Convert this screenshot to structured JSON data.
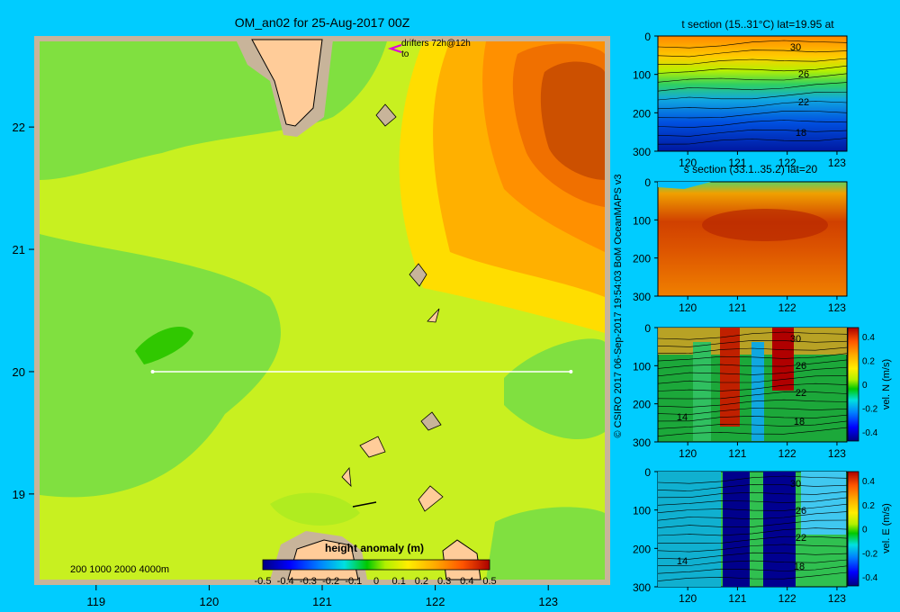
{
  "chart_data": [
    {
      "type": "heatmap",
      "title": "OM_an02 for 25-Aug-2017 00Z",
      "x_ticks": [
        "119",
        "120",
        "121",
        "122",
        "123"
      ],
      "y_ticks": [
        "22",
        "21",
        "20",
        "19"
      ],
      "xlim": [
        118.5,
        123.5
      ],
      "ylim": [
        18.3,
        22.7
      ],
      "drifters_label": "drifters 72h@12h",
      "drifters_sub": "to",
      "depth_legend": "200 1000 2000 4000m",
      "section_line": {
        "lat": 20,
        "lon_start": 119.5,
        "lon_end": 123.2
      },
      "colorbar": {
        "title": "height anomaly (m)",
        "range": [
          -0.5,
          0.5
        ],
        "ticks": [
          "-0.5",
          "-0.4",
          "-0.3",
          "-0.2",
          "-0.1",
          "0",
          "0.1",
          "0.2",
          "0.3",
          "0.4",
          "0.5"
        ]
      }
    },
    {
      "type": "heatmap",
      "title": "t section (15..31°C) lat=19.95 at",
      "x_ticks": [
        "120",
        "121",
        "122",
        "123"
      ],
      "y_ticks": [
        "0",
        "100",
        "200",
        "300"
      ],
      "contour_labels": [
        "30",
        "26",
        "22",
        "18"
      ]
    },
    {
      "type": "heatmap",
      "title": "s section (33.1..35.2) lat=20",
      "x_ticks": [
        "120",
        "121",
        "122",
        "123"
      ],
      "y_ticks": [
        "0",
        "100",
        "200",
        "300"
      ]
    },
    {
      "type": "heatmap",
      "title": "",
      "x_ticks": [
        "120",
        "121",
        "122",
        "123"
      ],
      "y_ticks": [
        "0",
        "100",
        "200",
        "300"
      ],
      "contour_labels": [
        "30",
        "26",
        "22",
        "18",
        "14"
      ],
      "colorbar": {
        "label": "vel. N (m/s)",
        "ticks": [
          "0.4",
          "0.2",
          "0",
          "-0.2",
          "-0.4"
        ]
      }
    },
    {
      "type": "heatmap",
      "title": "",
      "x_ticks": [
        "120",
        "121",
        "122",
        "123"
      ],
      "y_ticks": [
        "0",
        "100",
        "200",
        "300"
      ],
      "contour_labels": [
        "30",
        "26",
        "22",
        "18",
        "14"
      ],
      "colorbar": {
        "label": "vel. E (m/s)",
        "ticks": [
          "0.4",
          "0.2",
          "0",
          "-0.2",
          "-0.4"
        ]
      }
    }
  ],
  "credit": "© CSIRO 2017   06-Sep-2017 19:54:03 BoM OceanMAPS v3",
  "colors": {
    "background": "#00ccff",
    "land": "#ffcc99",
    "shelf": "#c8b49a",
    "section_line": "#ffffff",
    "drifter": "#dd00dd"
  }
}
